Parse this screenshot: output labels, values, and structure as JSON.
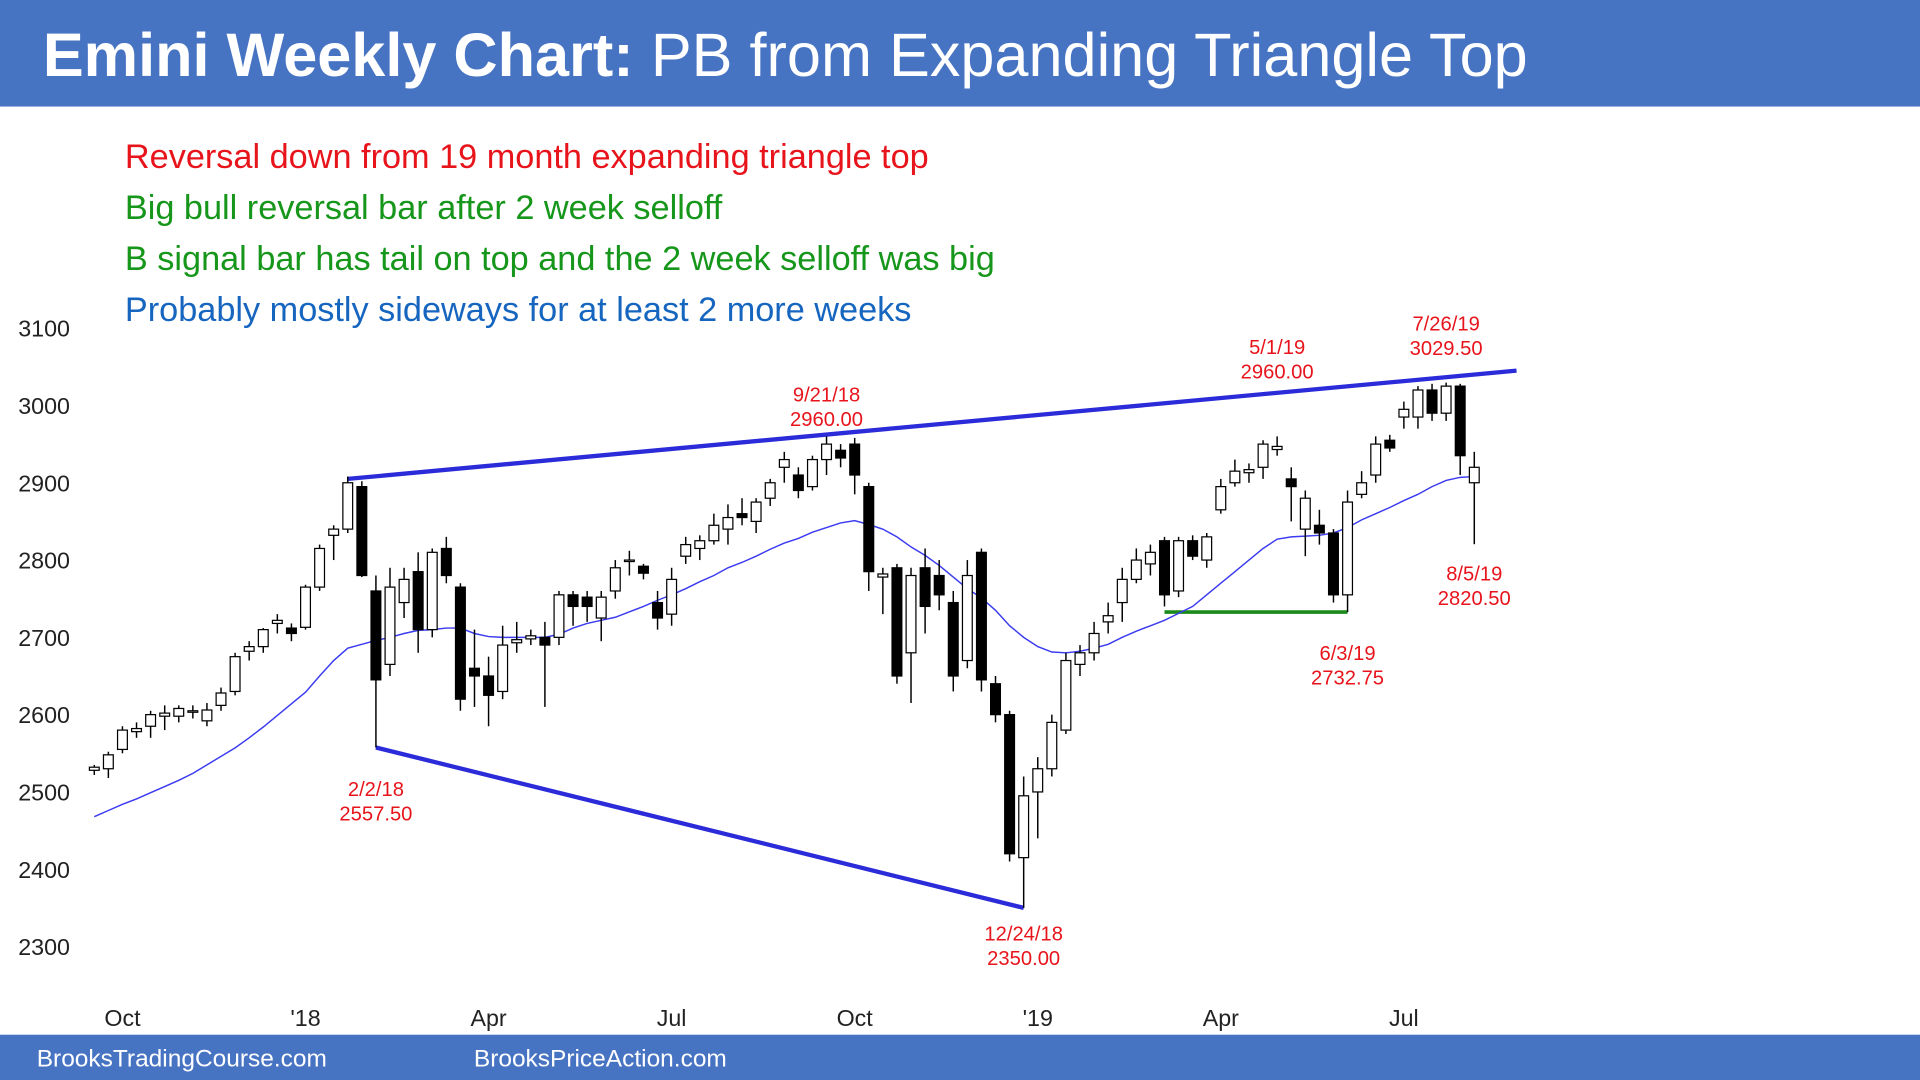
{
  "header": {
    "title_bold": "Emini Weekly Chart:",
    "title_rest": "PB from Expanding Triangle Top"
  },
  "notes": [
    {
      "text": "Reversal down from 19 month expanding triangle top",
      "color": "#e8141b"
    },
    {
      "text": "Big bull reversal bar after 2 week selloff",
      "color": "#16961a"
    },
    {
      "text": "B signal bar has tail on top and the 2 week selloff was big",
      "color": "#16961a"
    },
    {
      "text": "Probably mostly sideways for at least 2 more weeks",
      "color": "#1666c0"
    }
  ],
  "chart_data": {
    "type": "candlestick",
    "categories": [
      null,
      null,
      "Oct",
      null,
      null,
      null,
      null,
      null,
      null,
      null,
      null,
      null,
      null,
      null,
      null,
      "'18",
      null,
      null,
      null,
      null,
      null,
      null,
      null,
      null,
      null,
      null,
      null,
      null,
      "Apr",
      null,
      null,
      null,
      null,
      null,
      null,
      null,
      null,
      null,
      null,
      null,
      null,
      "Jul",
      null,
      null,
      null,
      null,
      null,
      null,
      null,
      null,
      null,
      null,
      null,
      null,
      "Oct",
      null,
      null,
      null,
      null,
      null,
      null,
      null,
      null,
      null,
      null,
      null,
      null,
      "'19",
      null,
      null,
      null,
      null,
      null,
      null,
      null,
      null,
      null,
      null,
      null,
      null,
      "Apr",
      null,
      null,
      null,
      null,
      null,
      null,
      null,
      null,
      null,
      null,
      null,
      null,
      "Jul",
      null,
      null,
      null,
      null,
      null
    ],
    "open": [
      2528,
      2530,
      2555,
      2578,
      2585,
      2598,
      2598,
      2604,
      2592,
      2612,
      2630,
      2682,
      2688,
      2718,
      2712,
      2713,
      2765,
      2832,
      2840,
      2895,
      2760,
      2665,
      2745,
      2785,
      2710,
      2815,
      2765,
      2660,
      2650,
      2630,
      2693,
      2698,
      2700,
      2700,
      2755,
      2752,
      2725,
      2760,
      2800,
      2792,
      2745,
      2730,
      2805,
      2815,
      2825,
      2840,
      2860,
      2850,
      2880,
      2920,
      2910,
      2895,
      2930,
      2942,
      2950,
      2895,
      2778,
      2790,
      2680,
      2790,
      2780,
      2745,
      2670,
      2810,
      2640,
      2600,
      2415,
      2500,
      2530,
      2580,
      2665,
      2680,
      2720,
      2745,
      2775,
      2795,
      2825,
      2760,
      2825,
      2800,
      2865,
      2900,
      2913,
      2920,
      2943,
      2905,
      2840,
      2845,
      2835,
      2755,
      2885,
      2910,
      2955,
      2985,
      2985,
      3020,
      2990,
      3025,
      2900
    ],
    "high": [
      2535,
      2552,
      2585,
      2590,
      2605,
      2612,
      2612,
      2612,
      2615,
      2635,
      2680,
      2695,
      2712,
      2730,
      2718,
      2768,
      2820,
      2845,
      2908,
      2902,
      2780,
      2790,
      2790,
      2810,
      2815,
      2830,
      2770,
      2710,
      2675,
      2715,
      2720,
      2710,
      2720,
      2760,
      2760,
      2760,
      2760,
      2800,
      2812,
      2795,
      2760,
      2790,
      2830,
      2832,
      2860,
      2872,
      2880,
      2880,
      2905,
      2940,
      2920,
      2935,
      2960,
      2950,
      2958,
      2900,
      2790,
      2795,
      2790,
      2815,
      2800,
      2760,
      2800,
      2815,
      2650,
      2605,
      2520,
      2545,
      2600,
      2680,
      2690,
      2720,
      2745,
      2790,
      2815,
      2820,
      2830,
      2830,
      2832,
      2835,
      2905,
      2930,
      2925,
      2955,
      2960,
      2920,
      2890,
      2865,
      2840,
      2890,
      2915,
      2960,
      2962,
      3005,
      3025,
      3028,
      3029.5,
      3028,
      2940
    ],
    "low": [
      2522,
      2518,
      2550,
      2570,
      2570,
      2580,
      2590,
      2595,
      2585,
      2605,
      2625,
      2670,
      2680,
      2705,
      2695,
      2710,
      2760,
      2800,
      2835,
      2778,
      2557.5,
      2650,
      2725,
      2680,
      2700,
      2770,
      2605,
      2610,
      2585,
      2620,
      2680,
      2690,
      2610,
      2690,
      2715,
      2720,
      2695,
      2750,
      2780,
      2775,
      2710,
      2715,
      2795,
      2800,
      2820,
      2820,
      2845,
      2835,
      2870,
      2900,
      2880,
      2890,
      2910,
      2920,
      2885,
      2760,
      2730,
      2640,
      2615,
      2705,
      2735,
      2630,
      2660,
      2630,
      2590,
      2410,
      2350,
      2440,
      2520,
      2575,
      2650,
      2670,
      2705,
      2720,
      2770,
      2780,
      2740,
      2752,
      2800,
      2790,
      2860,
      2895,
      2900,
      2905,
      2935,
      2850,
      2805,
      2820,
      2745,
      2732.75,
      2880,
      2900,
      2940,
      2970,
      2970,
      2980,
      2980,
      2910,
      2820.5
    ],
    "close": [
      2532,
      2548,
      2580,
      2582,
      2600,
      2602,
      2608,
      2605,
      2606,
      2628,
      2675,
      2688,
      2710,
      2722,
      2705,
      2765,
      2815,
      2840,
      2900,
      2780,
      2645,
      2765,
      2775,
      2710,
      2810,
      2780,
      2620,
      2650,
      2625,
      2690,
      2697,
      2702,
      2690,
      2755,
      2740,
      2740,
      2752,
      2790,
      2800,
      2783,
      2725,
      2775,
      2820,
      2825,
      2845,
      2855,
      2855,
      2875,
      2900,
      2930,
      2890,
      2930,
      2950,
      2932,
      2910,
      2785,
      2782,
      2650,
      2780,
      2740,
      2755,
      2650,
      2780,
      2645,
      2600,
      2420,
      2495,
      2530,
      2590,
      2670,
      2680,
      2705,
      2728,
      2775,
      2800,
      2810,
      2755,
      2825,
      2805,
      2830,
      2895,
      2915,
      2917,
      2950,
      2947,
      2895,
      2880,
      2835,
      2755,
      2875,
      2900,
      2950,
      2945,
      2995,
      3020,
      2990,
      3025,
      2935,
      2920
    ],
    "up_color": "#ffffff",
    "down_color": "#000000",
    "ma": {
      "color": "#3b3bf0",
      "values": [
        2468,
        2476,
        2484,
        2491,
        2499,
        2507,
        2515,
        2524,
        2535,
        2546,
        2557,
        2570,
        2584,
        2599,
        2614,
        2629,
        2650,
        2670,
        2686,
        2691,
        2696,
        2700,
        2705,
        2709,
        2710,
        2712,
        2712,
        2705,
        2701,
        2700,
        2700,
        2700,
        2700,
        2704,
        2712,
        2718,
        2722,
        2726,
        2733,
        2740,
        2748,
        2755,
        2763,
        2772,
        2780,
        2790,
        2797,
        2805,
        2814,
        2822,
        2828,
        2836,
        2842,
        2848,
        2851,
        2846,
        2840,
        2830,
        2817,
        2806,
        2793,
        2778,
        2763,
        2751,
        2735,
        2715,
        2700,
        2688,
        2681,
        2680,
        2682,
        2686,
        2691,
        2700,
        2708,
        2715,
        2722,
        2731,
        2740,
        2755,
        2770,
        2785,
        2800,
        2815,
        2827,
        2830,
        2831,
        2832,
        2835,
        2842,
        2852,
        2860,
        2868,
        2877,
        2885,
        2895,
        2903,
        2907,
        2908
      ]
    },
    "trendlines": [
      {
        "color": "#2b2bd9",
        "values": [
          2905,
          3045
        ]
      },
      {
        "color": "#2b2bd9",
        "values": [
          2557.5,
          2350
        ]
      },
      {
        "color": "#1a8a1a",
        "values": [
          2732.75,
          2732.75
        ]
      }
    ],
    "annotations": [
      {
        "date": "2/2/18",
        "value": 2557.5,
        "value_label": "2557.50"
      },
      {
        "date": "9/21/18",
        "value": 2960,
        "value_label": "2960.00"
      },
      {
        "date": "12/24/18",
        "value": 2350,
        "value_label": "2350.00"
      },
      {
        "date": "5/1/19",
        "value": 2960,
        "value_label": "2960.00"
      },
      {
        "date": "6/3/19",
        "value": 2732.75,
        "value_label": "2732.75"
      },
      {
        "date": "7/26/19",
        "value": 3029.5,
        "value_label": "3029.50"
      },
      {
        "date": "8/5/19",
        "value": 2820.5,
        "value_label": "2820.50"
      }
    ],
    "ylim": [
      2300,
      3100
    ],
    "yticks": [
      2300,
      2400,
      2500,
      2600,
      2700,
      2800,
      2900,
      3000,
      3100
    ]
  },
  "footer": {
    "left": "BrooksTradingCourse.com",
    "right": "BrooksPriceAction.com"
  }
}
